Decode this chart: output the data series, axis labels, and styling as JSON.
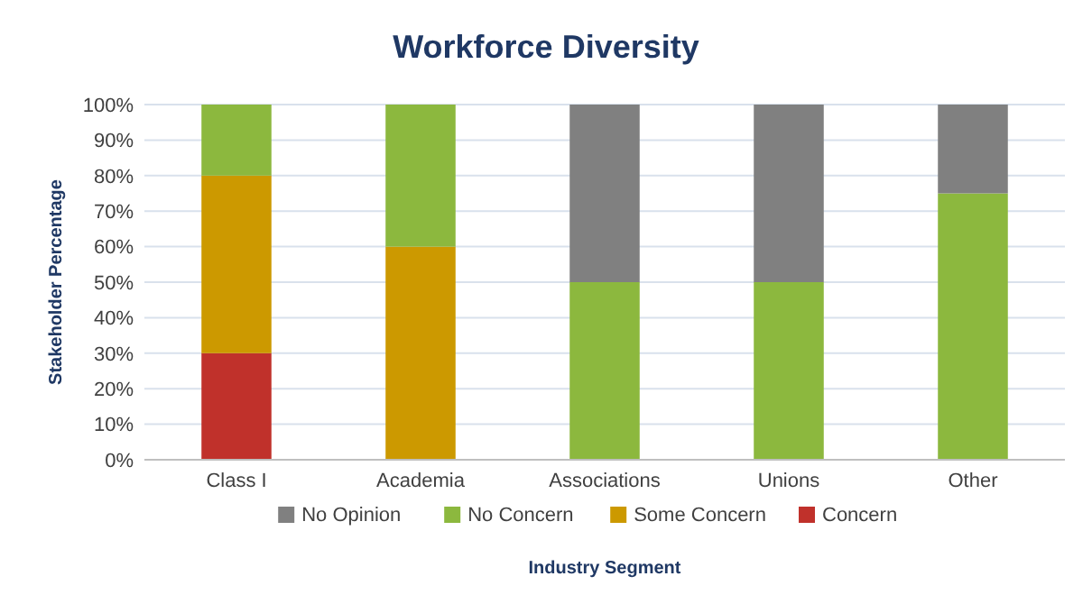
{
  "chart_data": {
    "type": "bar",
    "title": "Workforce Diversity",
    "xlabel": "Industry Segment",
    "ylabel": "Stakeholder Percentage",
    "categories": [
      "Class I",
      "Academia",
      "Associations",
      "Unions",
      "Other"
    ],
    "stacked": true,
    "series": [
      {
        "name": "Concern",
        "color": "#c0312b",
        "values": [
          30,
          0,
          0,
          0,
          0
        ]
      },
      {
        "name": "Some Concern",
        "color": "#cc9900",
        "values": [
          50,
          60,
          0,
          0,
          0
        ]
      },
      {
        "name": "No Concern",
        "color": "#8cb83e",
        "values": [
          20,
          40,
          50,
          50,
          75
        ]
      },
      {
        "name": "No Opinion",
        "color": "#808080",
        "values": [
          0,
          0,
          50,
          50,
          25
        ]
      }
    ],
    "ylim": [
      0,
      100
    ],
    "yticks": [
      {
        "value": 0,
        "label": "0%"
      },
      {
        "value": 10,
        "label": "10%"
      },
      {
        "value": 20,
        "label": "20%"
      },
      {
        "value": 30,
        "label": "30%"
      },
      {
        "value": 40,
        "label": "40%"
      },
      {
        "value": 50,
        "label": "50%"
      },
      {
        "value": 60,
        "label": "60%"
      },
      {
        "value": 70,
        "label": "70%"
      },
      {
        "value": 80,
        "label": "80%"
      },
      {
        "value": 90,
        "label": "90%"
      },
      {
        "value": 100,
        "label": "100%"
      }
    ],
    "grid": "y",
    "legend": "bottom"
  }
}
